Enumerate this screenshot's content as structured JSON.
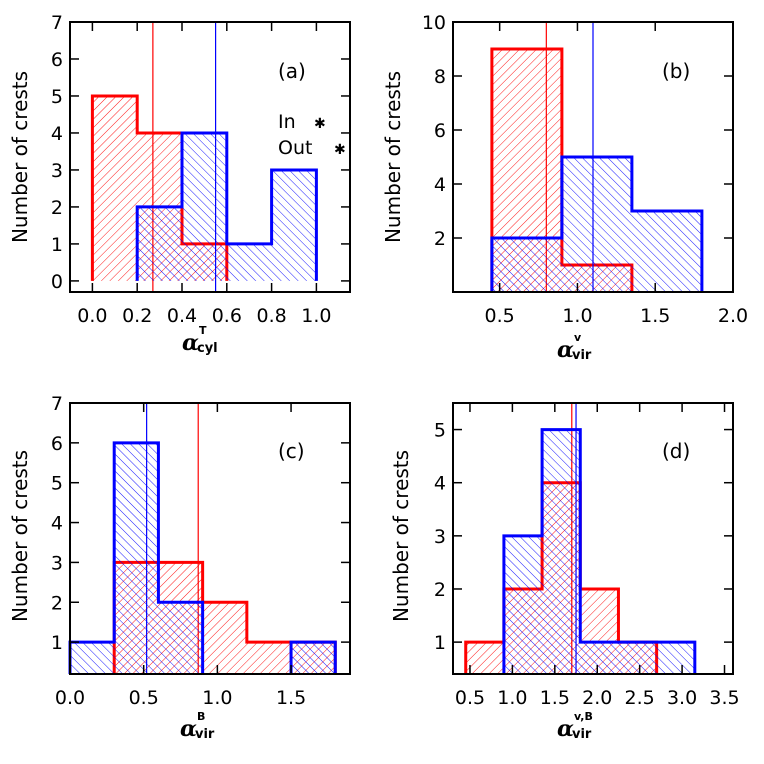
{
  "colors": {
    "in": "#ff0000",
    "out": "#0000ff",
    "axis": "#000000"
  },
  "chart_data": [
    {
      "type": "bar",
      "histogram": true,
      "panel_label": "(a)",
      "ylabel": "Number of crests",
      "xlabel": {
        "main": "α",
        "sub": "cyl",
        "sup": "T"
      },
      "xlim": [
        -0.1,
        1.15
      ],
      "ylim": [
        -0.3,
        7
      ],
      "xticks": [
        0.0,
        0.2,
        0.4,
        0.6,
        0.8,
        1.0
      ],
      "xtick_labels": [
        "0.0",
        "0.2",
        "0.4",
        "0.6",
        "0.8",
        "1.0"
      ],
      "yticks": [
        0,
        1,
        2,
        3,
        4,
        5,
        6,
        7
      ],
      "ytick_labels": [
        "0",
        "1",
        "2",
        "3",
        "4",
        "5",
        "6",
        "7"
      ],
      "legend": [
        {
          "label": "In",
          "color": "#ff0000"
        },
        {
          "label": "Out",
          "color": "#0000ff"
        }
      ],
      "legend_position": "right",
      "series": [
        {
          "name": "In",
          "color": "#ff0000",
          "bins": [
            [
              0.0,
              0.2,
              5
            ],
            [
              0.2,
              0.4,
              4
            ],
            [
              0.4,
              0.6,
              1
            ]
          ],
          "median": 0.27
        },
        {
          "name": "Out",
          "color": "#0000ff",
          "bins": [
            [
              0.2,
              0.4,
              2
            ],
            [
              0.4,
              0.6,
              4
            ],
            [
              0.6,
              0.8,
              1
            ],
            [
              0.8,
              1.0,
              3
            ]
          ],
          "median": 0.55
        }
      ]
    },
    {
      "type": "bar",
      "histogram": true,
      "panel_label": "(b)",
      "ylabel": "Number of crests",
      "xlabel": {
        "main": "α",
        "sub": "vir",
        "sup": "v"
      },
      "xlim": [
        0.2,
        2.0
      ],
      "ylim": [
        0,
        10
      ],
      "xticks": [
        0.5,
        1.0,
        1.5,
        2.0
      ],
      "xtick_labels": [
        "0.5",
        "1.0",
        "1.5",
        "2.0"
      ],
      "yticks": [
        2,
        4,
        6,
        8,
        10
      ],
      "ytick_labels": [
        "2",
        "4",
        "6",
        "8",
        "10"
      ],
      "series": [
        {
          "name": "In",
          "color": "#ff0000",
          "bins": [
            [
              0.45,
              0.9,
              9
            ],
            [
              0.9,
              1.35,
              1
            ]
          ],
          "median": 0.8
        },
        {
          "name": "Out",
          "color": "#0000ff",
          "bins": [
            [
              0.45,
              0.9,
              2
            ],
            [
              0.9,
              1.35,
              5
            ],
            [
              1.35,
              1.8,
              3
            ]
          ],
          "median": 1.1
        }
      ]
    },
    {
      "type": "bar",
      "histogram": true,
      "panel_label": "(c)",
      "ylabel": "Number of crests",
      "xlabel": {
        "main": "α",
        "sub": "vir",
        "sup": "B"
      },
      "xlim": [
        0.0,
        1.9
      ],
      "ylim": [
        0.2,
        7
      ],
      "xticks": [
        0.0,
        0.5,
        1.0,
        1.5
      ],
      "xtick_labels": [
        "0.0",
        "0.5",
        "1.0",
        "1.5"
      ],
      "yticks": [
        1,
        2,
        3,
        4,
        5,
        6,
        7
      ],
      "ytick_labels": [
        "1",
        "2",
        "3",
        "4",
        "5",
        "6",
        "7"
      ],
      "series": [
        {
          "name": "In",
          "color": "#ff0000",
          "bins": [
            [
              0.3,
              0.9,
              3
            ],
            [
              0.9,
              1.2,
              2
            ],
            [
              1.2,
              1.8,
              1
            ]
          ],
          "median": 0.87
        },
        {
          "name": "Out",
          "color": "#0000ff",
          "bins": [
            [
              0.0,
              0.3,
              1
            ],
            [
              0.3,
              0.6,
              6
            ],
            [
              0.6,
              0.9,
              2
            ],
            [
              1.5,
              1.8,
              1
            ]
          ],
          "median": 0.52
        }
      ]
    },
    {
      "type": "bar",
      "histogram": true,
      "panel_label": "(d)",
      "ylabel": "Number of crests",
      "xlabel": {
        "main": "α",
        "sub": "vir",
        "sup": "v,B"
      },
      "xlim": [
        0.3,
        3.6
      ],
      "ylim": [
        0.4,
        5.5
      ],
      "xticks": [
        0.5,
        1.0,
        1.5,
        2.0,
        2.5,
        3.0,
        3.5
      ],
      "xtick_labels": [
        "0.5",
        "1.0",
        "1.5",
        "2.0",
        "2.5",
        "3.0",
        "3.5"
      ],
      "yticks": [
        1,
        2,
        3,
        4,
        5
      ],
      "ytick_labels": [
        "1",
        "2",
        "3",
        "4",
        "5"
      ],
      "series": [
        {
          "name": "In",
          "color": "#ff0000",
          "bins": [
            [
              0.45,
              0.9,
              1
            ],
            [
              0.9,
              1.35,
              2
            ],
            [
              1.35,
              1.8,
              4
            ],
            [
              1.8,
              2.25,
              2
            ],
            [
              2.25,
              2.7,
              1
            ]
          ],
          "median": 1.7
        },
        {
          "name": "Out",
          "color": "#0000ff",
          "bins": [
            [
              0.9,
              1.35,
              3
            ],
            [
              1.35,
              1.8,
              5
            ],
            [
              1.8,
              2.25,
              1
            ],
            [
              2.25,
              2.7,
              1
            ],
            [
              2.7,
              3.15,
              1
            ]
          ],
          "median": 1.75
        }
      ]
    }
  ]
}
